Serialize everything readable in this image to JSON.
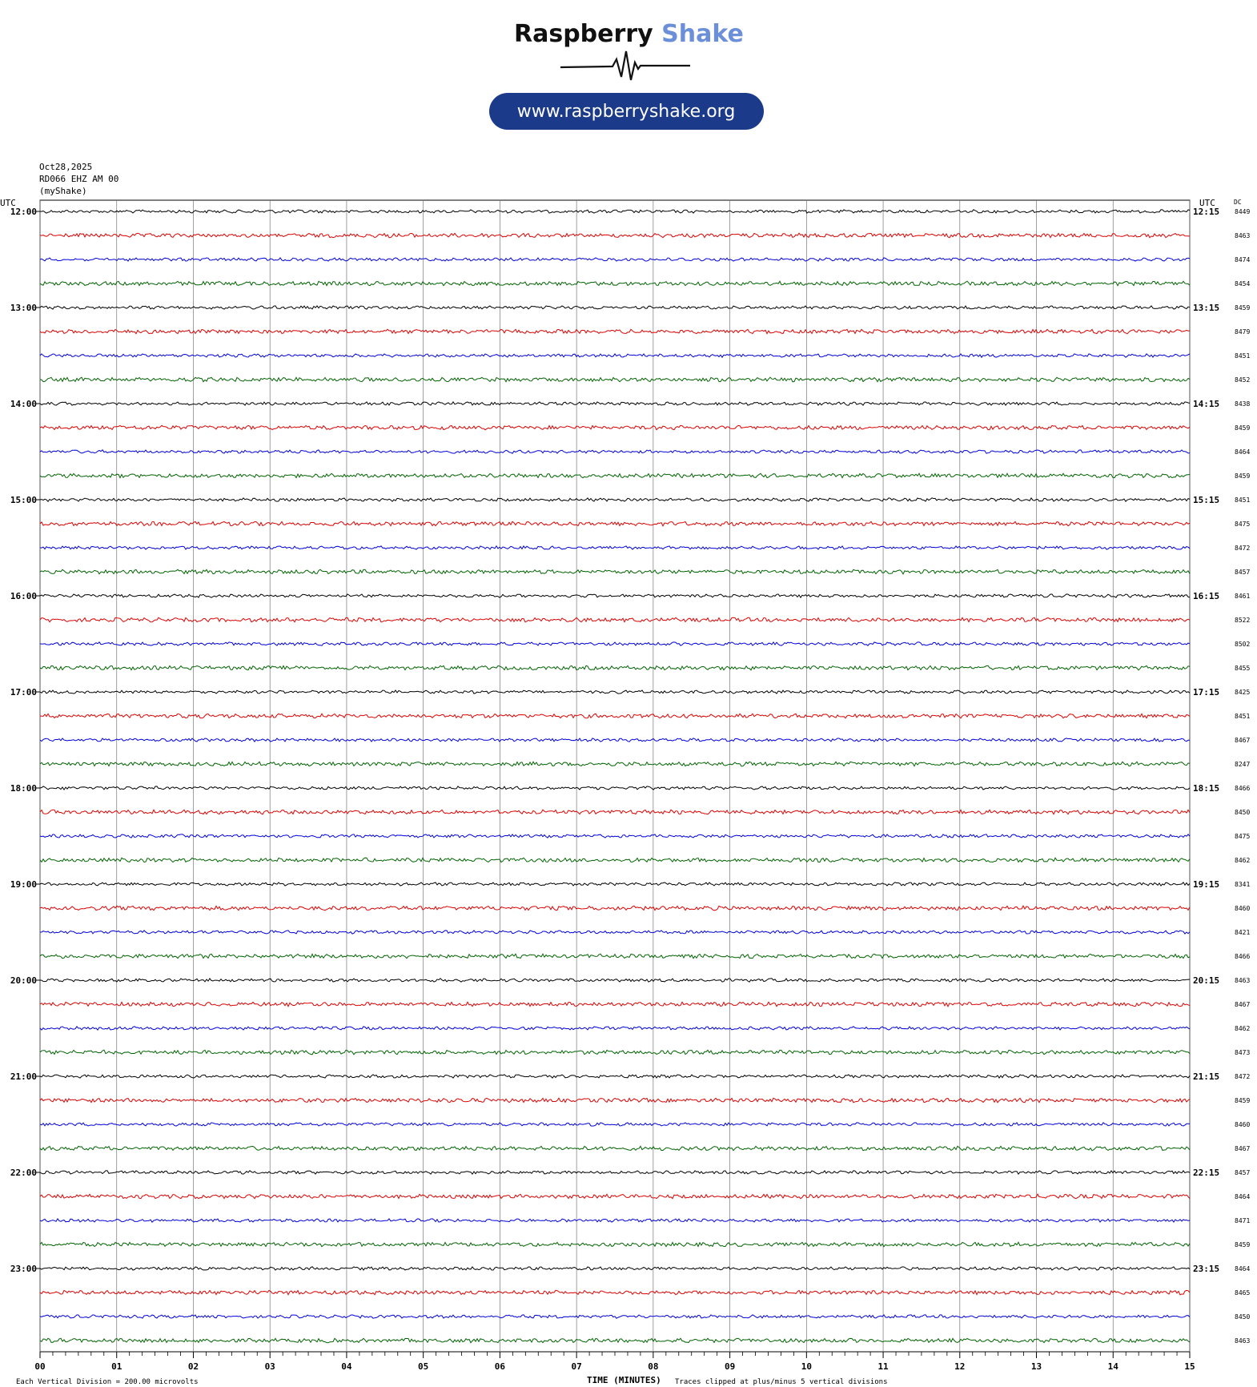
{
  "brand": {
    "name_part1": "Raspberry",
    "name_part2": "Shake",
    "url": "www.raspberryshake.org",
    "color_dark": "#111111",
    "color_accent": "#6b8fd8",
    "pill_color": "#1b3a8a"
  },
  "header": {
    "date": "Oct28,2025",
    "station": "RD066 EHZ AM 00",
    "source": "(myShake)",
    "utc_left": "UTC",
    "utc_right": "UTC",
    "dc_label": "DC"
  },
  "footer": {
    "scale_note": "Each Vertical Division =  200.00 microvolts",
    "axis_title": "TIME (MINUTES)",
    "clip_note": "Traces clipped at plus/minus 5 vertical divisions"
  },
  "chart_data": {
    "type": "line",
    "title": "",
    "xlabel": "TIME (MINUTES)",
    "xlim": [
      0,
      15
    ],
    "x_ticks": [
      "00",
      "01",
      "02",
      "03",
      "04",
      "05",
      "06",
      "07",
      "08",
      "09",
      "10",
      "11",
      "12",
      "13",
      "14",
      "15"
    ],
    "trace_colors": [
      "#000000",
      "#e00000",
      "#0000e0",
      "#006400"
    ],
    "left_hour_labels": [
      "12:00",
      "13:00",
      "14:00",
      "15:00",
      "16:00",
      "17:00",
      "18:00",
      "19:00",
      "20:00",
      "21:00",
      "22:00",
      "23:00"
    ],
    "right_hour_labels": [
      "12:15",
      "13:15",
      "14:15",
      "15:15",
      "16:15",
      "17:15",
      "18:15",
      "19:15",
      "20:15",
      "21:15",
      "22:15",
      "23:15"
    ],
    "dc_offsets": [
      8449,
      8463,
      8474,
      8454,
      8459,
      8479,
      8451,
      8452,
      8438,
      8459,
      8464,
      8459,
      8451,
      8475,
      8472,
      8457,
      8461,
      8522,
      8502,
      8455,
      8425,
      8451,
      8467,
      8247,
      8466,
      8450,
      8475,
      8462,
      8341,
      8460,
      8421,
      8466,
      8463,
      8467,
      8462,
      8473,
      8472,
      8459,
      8460,
      8467,
      8457,
      8464,
      8471,
      8459,
      8464,
      8465,
      8450,
      8463
    ]
  }
}
